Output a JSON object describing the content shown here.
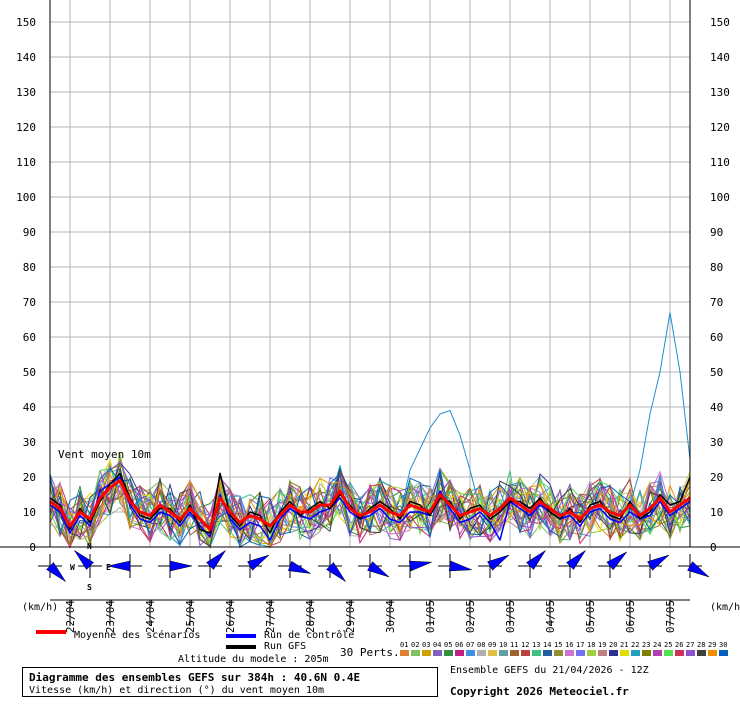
{
  "chart_data": {
    "type": "line",
    "title": "Diagramme des ensembles GEFS sur 384h : 40.6N 0.4E",
    "subtitle": "Vitesse (km/h) et direction (°) du vent moyen 10m",
    "series_label": "Vent moyen 10m",
    "ylabel": "(km/h)",
    "ylim": [
      0,
      150
    ],
    "y_ticks": [
      0,
      10,
      20,
      30,
      40,
      50,
      60,
      70,
      80,
      90,
      100,
      110,
      120,
      130,
      140,
      150
    ],
    "x_labels": [
      "22/04",
      "23/04",
      "24/04",
      "25/04",
      "26/04",
      "27/04",
      "28/04",
      "29/04",
      "30/04",
      "01/05",
      "02/05",
      "03/05",
      "04/05",
      "05/05",
      "06/05",
      "07/05"
    ],
    "steps": 65,
    "grid": true,
    "series": [
      {
        "name": "Moyenne des scénarios",
        "color": "#ff0000",
        "values": [
          13,
          11,
          6,
          10,
          8,
          14,
          17,
          19,
          13,
          10,
          9,
          12,
          10,
          8,
          11,
          8,
          5,
          14,
          10,
          7,
          9,
          8,
          6,
          9,
          12,
          10,
          10,
          12,
          12,
          16,
          11,
          9,
          10,
          12,
          10,
          9,
          12,
          11,
          10,
          15,
          12,
          9,
          10,
          11,
          9,
          11,
          14,
          12,
          10,
          13,
          11,
          9,
          10,
          8,
          11,
          12,
          10,
          9,
          12,
          9,
          11,
          14,
          10,
          12,
          14
        ]
      },
      {
        "name": "Run de contrôle",
        "color": "#0000ff",
        "values": [
          12,
          10,
          4,
          9,
          6,
          16,
          18,
          20,
          12,
          8,
          7,
          10,
          9,
          6,
          10,
          6,
          3,
          15,
          8,
          5,
          7,
          6,
          2,
          8,
          11,
          9,
          8,
          10,
          11,
          14,
          10,
          8,
          9,
          11,
          8,
          7,
          10,
          10,
          9,
          16,
          11,
          7,
          8,
          10,
          7,
          2,
          13,
          11,
          9,
          12,
          10,
          8,
          9,
          6,
          10,
          11,
          8,
          7,
          10,
          8,
          9,
          13,
          9,
          11,
          13
        ]
      },
      {
        "name": "Run GFS",
        "color": "#000000",
        "values": [
          14,
          12,
          5,
          11,
          7,
          13,
          18,
          21,
          14,
          9,
          8,
          11,
          11,
          7,
          12,
          5,
          4,
          21,
          9,
          6,
          10,
          9,
          4,
          10,
          13,
          9,
          11,
          13,
          11,
          15,
          12,
          8,
          11,
          13,
          11,
          8,
          13,
          12,
          9,
          14,
          13,
          8,
          11,
          12,
          8,
          10,
          13,
          13,
          11,
          14,
          10,
          8,
          11,
          7,
          12,
          13,
          9,
          8,
          13,
          8,
          10,
          15,
          12,
          13,
          20
        ]
      }
    ],
    "perturbation_highlights": [
      {
        "color": "#1e90d0",
        "peak_values": [
          39,
          67
        ]
      }
    ],
    "perturbation_count_label": "30 Perts.",
    "perturbation_numbers": [
      "01",
      "02",
      "03",
      "04",
      "05",
      "06",
      "07",
      "08",
      "09",
      "10",
      "11",
      "12",
      "13",
      "14",
      "15",
      "16",
      "17",
      "18",
      "19",
      "20",
      "21",
      "22",
      "23",
      "24",
      "25",
      "26",
      "27",
      "28",
      "29",
      "30"
    ],
    "perturbation_colors": [
      "#e08030",
      "#80c060",
      "#d0a000",
      "#8060c0",
      "#309040",
      "#c02080",
      "#4090e0",
      "#b0b0b0",
      "#e0c040",
      "#60a0a0",
      "#a06030",
      "#c04040",
      "#40c080",
      "#2060a0",
      "#909030",
      "#d070d0",
      "#7070f0",
      "#a0d040",
      "#c08080",
      "#303090",
      "#e0e000",
      "#20a0c0",
      "#808000",
      "#b040b0",
      "#50e050",
      "#d03060",
      "#9050d0",
      "#404040",
      "#f09000",
      "#0060c0"
    ],
    "direction_arrows_deg": [
      315,
      135,
      90,
      270,
      225,
      240,
      290,
      315,
      300,
      260,
      280,
      240,
      225,
      225,
      230,
      240,
      300
    ]
  },
  "legend": {
    "mean": "Moyenne des scénarios",
    "control": "Run de contrôle",
    "gfs": "Run GFS"
  },
  "info": {
    "altitude": "Altitude du modele : 205m",
    "ensemble": "Ensemble GEFS du 21/04/2026 - 12Z",
    "copyright": "Copyright 2026 Meteociel.fr"
  },
  "compass": {
    "n": "N",
    "s": "S",
    "e": "E",
    "w": "W"
  },
  "colors": {
    "grid": "#b4b4b4",
    "mean": "#ff0000",
    "control": "#0000ff",
    "gfs": "#000000",
    "arrows": "#0000ff"
  }
}
